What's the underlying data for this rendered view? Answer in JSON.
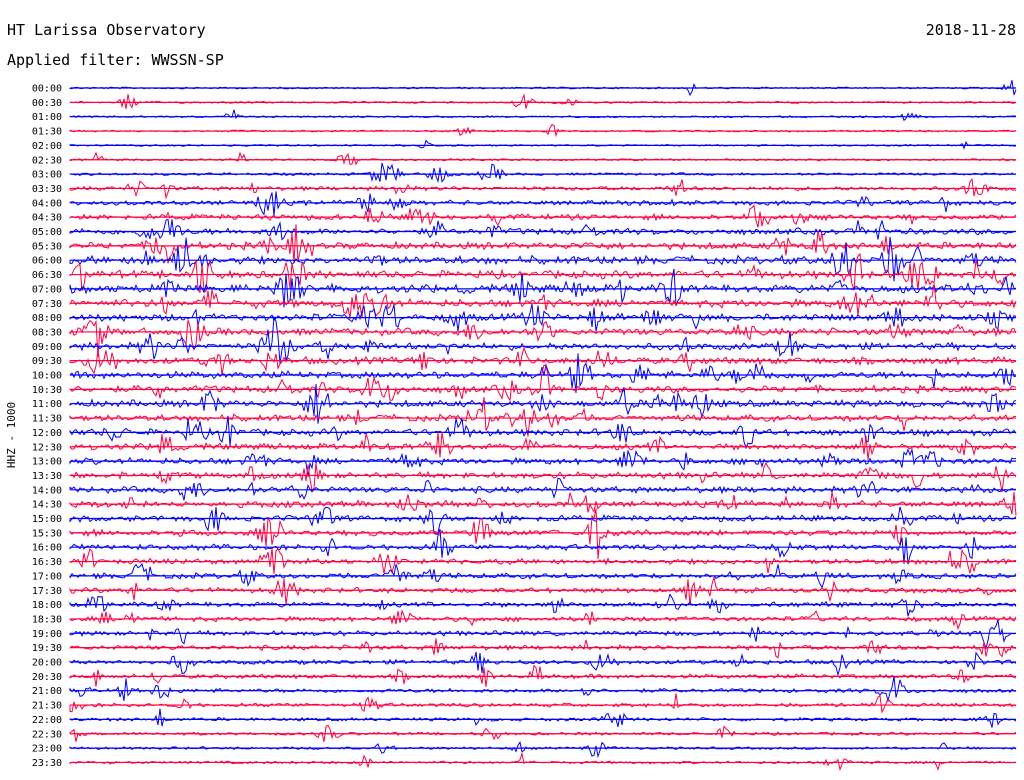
{
  "header": {
    "station": "HT Larissa Observatory",
    "filter": "Applied filter: WWSSN-SP",
    "date": "2018-11-28"
  },
  "colors": {
    "trace_a": "#0000ff",
    "trace_b": "#ff0040"
  },
  "chart_data": {
    "type": "line",
    "title": "HT Larissa Observatory",
    "subtitle": "Applied filter: WWSSN-SP",
    "date": "2018-11-28",
    "ylabel": "HHZ - 1000",
    "xlabel": "",
    "row_labels": [
      "00:00",
      "00:30",
      "01:00",
      "01:30",
      "02:00",
      "02:30",
      "03:00",
      "03:30",
      "04:00",
      "04:30",
      "05:00",
      "05:30",
      "06:00",
      "06:30",
      "07:00",
      "07:30",
      "08:00",
      "08:30",
      "09:00",
      "09:30",
      "10:00",
      "10:30",
      "11:00",
      "11:30",
      "12:00",
      "12:30",
      "13:00",
      "13:30",
      "14:00",
      "14:30",
      "15:00",
      "15:30",
      "16:00",
      "16:30",
      "17:00",
      "17:30",
      "18:00",
      "18:30",
      "19:00",
      "19:30",
      "20:00",
      "20:30",
      "21:00",
      "21:30",
      "22:00",
      "22:30",
      "23:00",
      "23:30"
    ],
    "row_noise_level": [
      0.08,
      0.1,
      0.08,
      0.08,
      0.06,
      0.12,
      0.2,
      0.4,
      0.5,
      0.6,
      0.7,
      0.8,
      0.95,
      0.9,
      0.95,
      0.9,
      0.85,
      0.85,
      0.8,
      0.8,
      0.8,
      0.8,
      0.8,
      0.75,
      0.75,
      0.7,
      0.7,
      0.7,
      0.7,
      0.7,
      0.65,
      0.65,
      0.6,
      0.6,
      0.6,
      0.55,
      0.55,
      0.5,
      0.5,
      0.5,
      0.45,
      0.45,
      0.4,
      0.35,
      0.3,
      0.25,
      0.2,
      0.2
    ],
    "color_pattern": [
      "blue",
      "red"
    ],
    "grid": false,
    "legend": "none"
  }
}
